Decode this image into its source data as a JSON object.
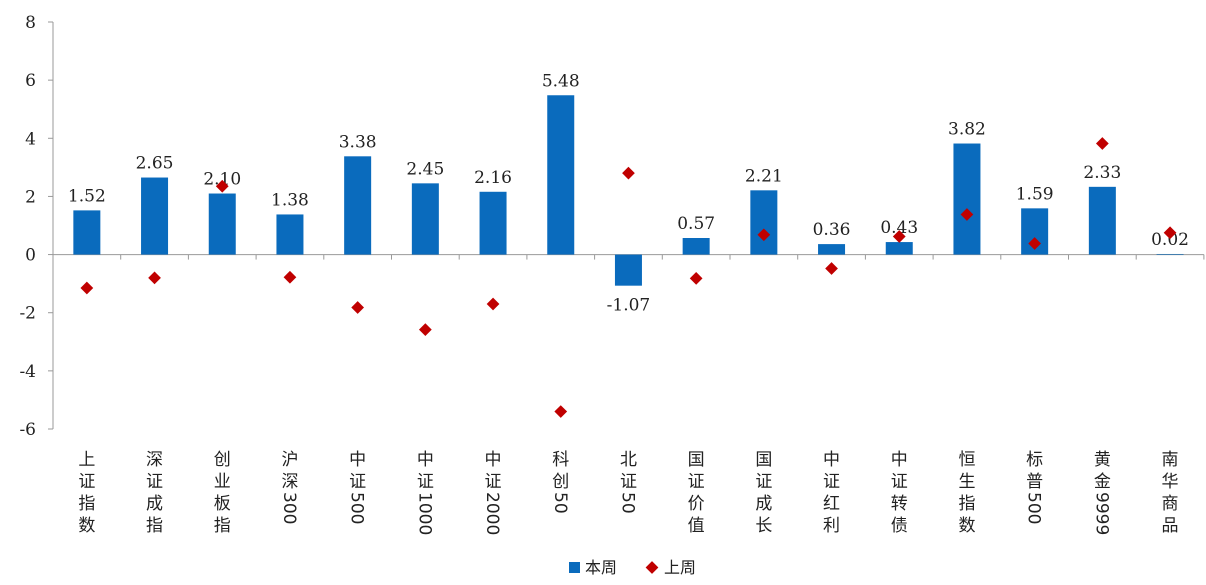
{
  "chart_data": {
    "type": "bar",
    "categories": [
      "上证指数",
      "深证成指",
      "创业板指",
      "沪深300",
      "中证500",
      "中证1000",
      "中证2000",
      "科创50",
      "北证50",
      "国证价值",
      "国证成长",
      "中证红利",
      "中证转债",
      "恒生指数",
      "标普500",
      "黄金9999",
      "南华商品"
    ],
    "series": [
      {
        "name": "本周",
        "type": "bar",
        "color": "#0a6bbd",
        "values": [
          1.52,
          2.65,
          2.1,
          1.38,
          3.38,
          2.45,
          2.16,
          5.48,
          -1.07,
          0.57,
          2.21,
          0.36,
          0.43,
          3.82,
          1.59,
          2.33,
          0.02
        ],
        "labels": [
          "1.52",
          "2.65",
          "2.10",
          "1.38",
          "3.38",
          "2.45",
          "2.16",
          "5.48",
          "-1.07",
          "0.57",
          "2.21",
          "0.36",
          "0.43",
          "3.82",
          "1.59",
          "2.33",
          "0.02"
        ]
      },
      {
        "name": "上周",
        "type": "scatter",
        "marker": "diamond",
        "color": "#c00000",
        "values": [
          -1.15,
          -0.8,
          2.35,
          -0.78,
          -1.82,
          -2.58,
          -1.7,
          -5.4,
          2.8,
          -0.82,
          0.68,
          -0.48,
          0.62,
          1.38,
          0.38,
          3.82,
          0.75
        ]
      }
    ],
    "yticks": [
      -6,
      -4,
      -2,
      0,
      2,
      4,
      6,
      8
    ],
    "ylim": [
      -6,
      8
    ],
    "legend": "bottom-center"
  }
}
